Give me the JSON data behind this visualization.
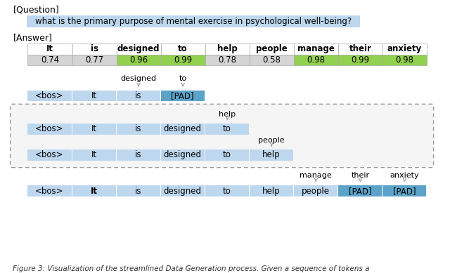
{
  "question_label": "[Question]",
  "question_text": "what is the primary purpose of mental exercise in psychological well-being?",
  "answer_label": "[Answer]",
  "tokens": [
    "It",
    "is",
    "designed",
    "to",
    "help",
    "people",
    "manage",
    "their",
    "anxiety"
  ],
  "scores": [
    "0.74",
    "0.77",
    "0.96",
    "0.99",
    "0.78",
    "0.58",
    "0.98",
    "0.99",
    "0.98"
  ],
  "score_colors": [
    "#d4d4d4",
    "#d4d4d4",
    "#92d050",
    "#92d050",
    "#d4d4d4",
    "#d4d4d4",
    "#92d050",
    "#92d050",
    "#92d050"
  ],
  "bg_color": "#ffffff",
  "question_bg": "#bdd7ee",
  "row_bg": "#bdd7ee",
  "pad_bg": "#5ba3c9",
  "caption": "Figure 3: Visualization of the streamlined Data Generation process. Given a sequence of tokens a"
}
